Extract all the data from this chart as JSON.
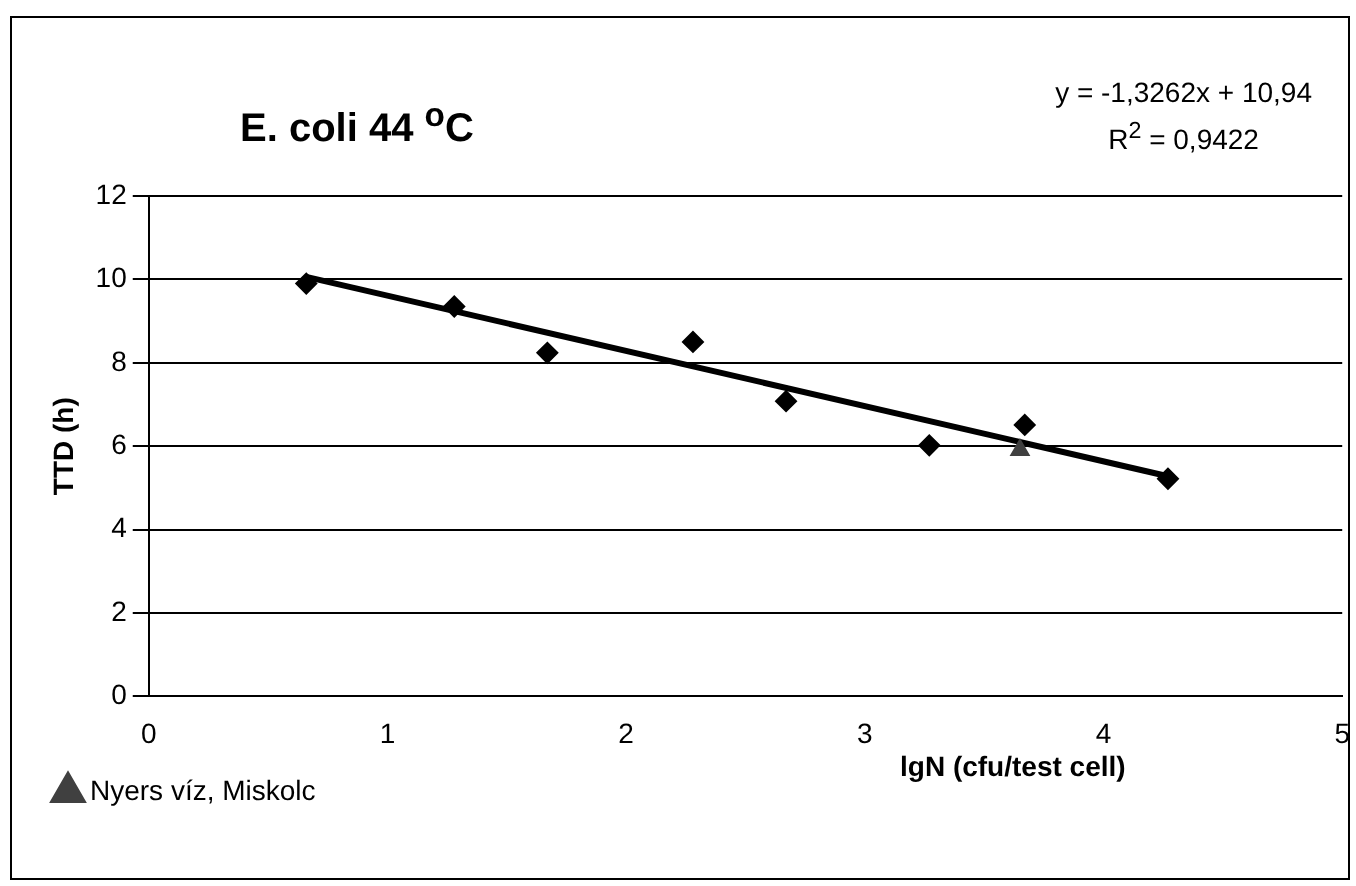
{
  "chart_data": {
    "type": "scatter",
    "title": "E. coli 44 $^{o}$C",
    "xlabel": "lgN (cfu/test cell)",
    "ylabel": "TTD (h)",
    "annotations": [
      "y = -1,3262x + 10,94",
      "R$^{2}$ = 0,9422"
    ],
    "series": [
      {
        "color": "#000000",
        "marker": "diamond",
        "x": [
          0.66,
          1.28,
          1.67,
          2.28,
          2.67,
          3.27,
          3.67,
          4.27
        ],
        "values": [
          9.9,
          9.35,
          8.24,
          8.5,
          7.08,
          6.02,
          6.51,
          5.22
        ]
      },
      {
        "name": "Nyers víz, Miskolc",
        "color": "#404040",
        "marker": "triangle",
        "x": [
          3.65
        ],
        "values": [
          5.91
        ]
      },
      {
        "type": "line",
        "color": "#000000",
        "marker": "none",
        "x": [
          0.66,
          4.27
        ],
        "values": [
          10.06,
          5.28
        ]
      }
    ],
    "xlim": [
      0,
      5
    ],
    "xticks": [
      0,
      1,
      2,
      3,
      4,
      5
    ],
    "ylim": [
      0,
      12
    ],
    "yticks": [
      0,
      2,
      4,
      6,
      8,
      10,
      12
    ],
    "grid": "y",
    "legend": "bottom left"
  }
}
